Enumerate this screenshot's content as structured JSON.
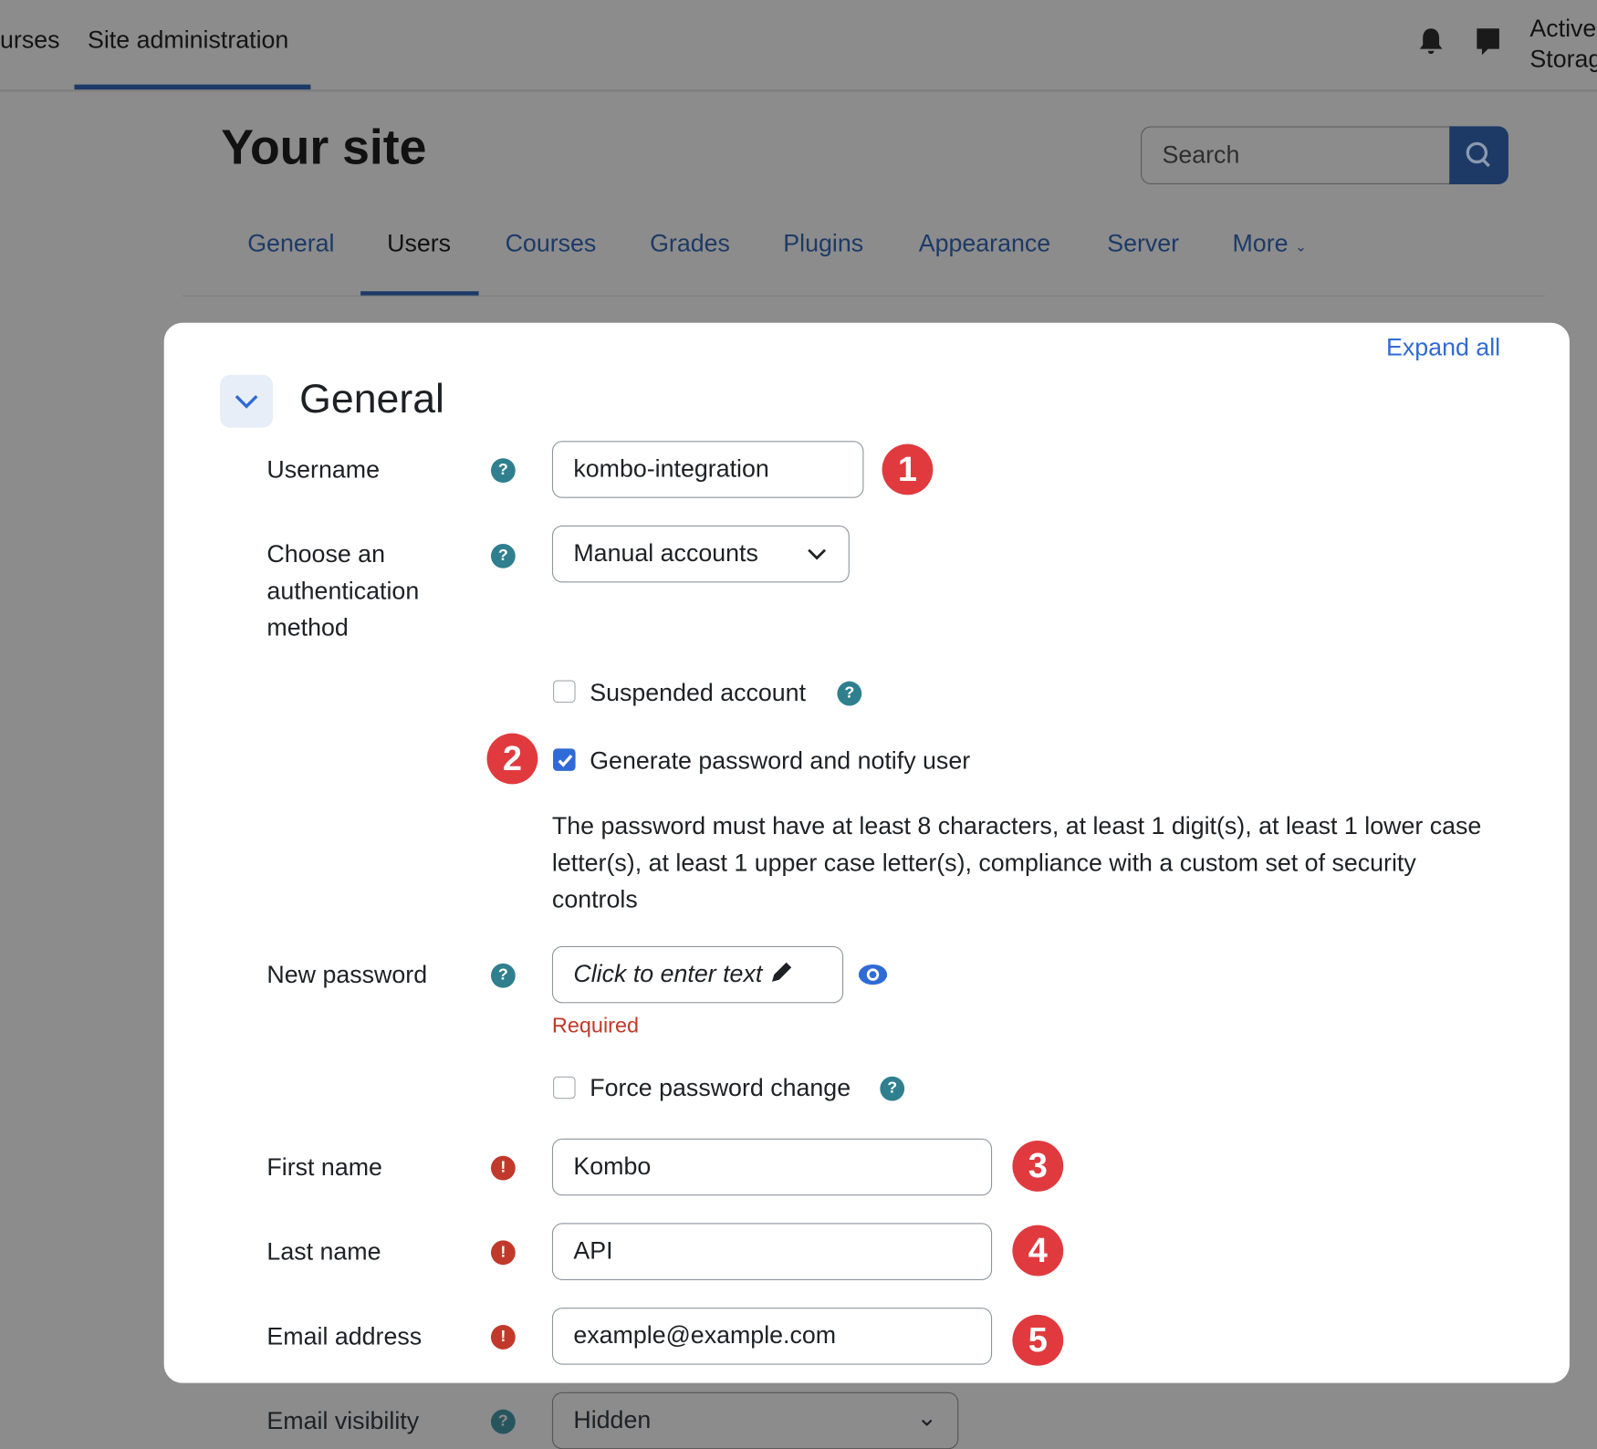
{
  "topnav": {
    "items": [
      "urses",
      "Site administration"
    ],
    "user_line1": "Active",
    "user_line2": "Storag"
  },
  "header": {
    "title": "Your site",
    "search_placeholder": "Search"
  },
  "tabs": [
    "General",
    "Users",
    "Courses",
    "Grades",
    "Plugins",
    "Appearance",
    "Server",
    "More"
  ],
  "active_tab": "Users",
  "card": {
    "expand_all": "Expand all",
    "section_title": "General"
  },
  "form": {
    "username_label": "Username",
    "username_value": "kombo-integration",
    "auth_label_1": "Choose an",
    "auth_label_2": "authentication",
    "auth_label_3": "method",
    "auth_value": "Manual accounts",
    "suspended_label": "Suspended account",
    "generate_label": "Generate password and notify user",
    "generate_checked": true,
    "policy_1": "The password must have at least 8 characters, at least 1 digit(s), at least 1 lower case",
    "policy_2": "letter(s), at least 1 upper case letter(s), compliance with a custom set of security",
    "policy_3": "controls",
    "password_label": "New password",
    "password_placeholder": "Click to enter text",
    "password_required": "Required",
    "force_label": "Force password change",
    "first_label": "First name",
    "first_value": "Kombo",
    "last_label": "Last name",
    "last_value": "API",
    "email_label": "Email address",
    "email_value": "example@example.com",
    "visibility_label": "Email visibility",
    "visibility_value": "Hidden"
  },
  "badges": [
    "1",
    "2",
    "3",
    "4",
    "5"
  ],
  "colors": {
    "accent": "#1d3a66",
    "badge": "#e03a3e",
    "help": "#2f7f8f",
    "error": "#c0392b"
  }
}
